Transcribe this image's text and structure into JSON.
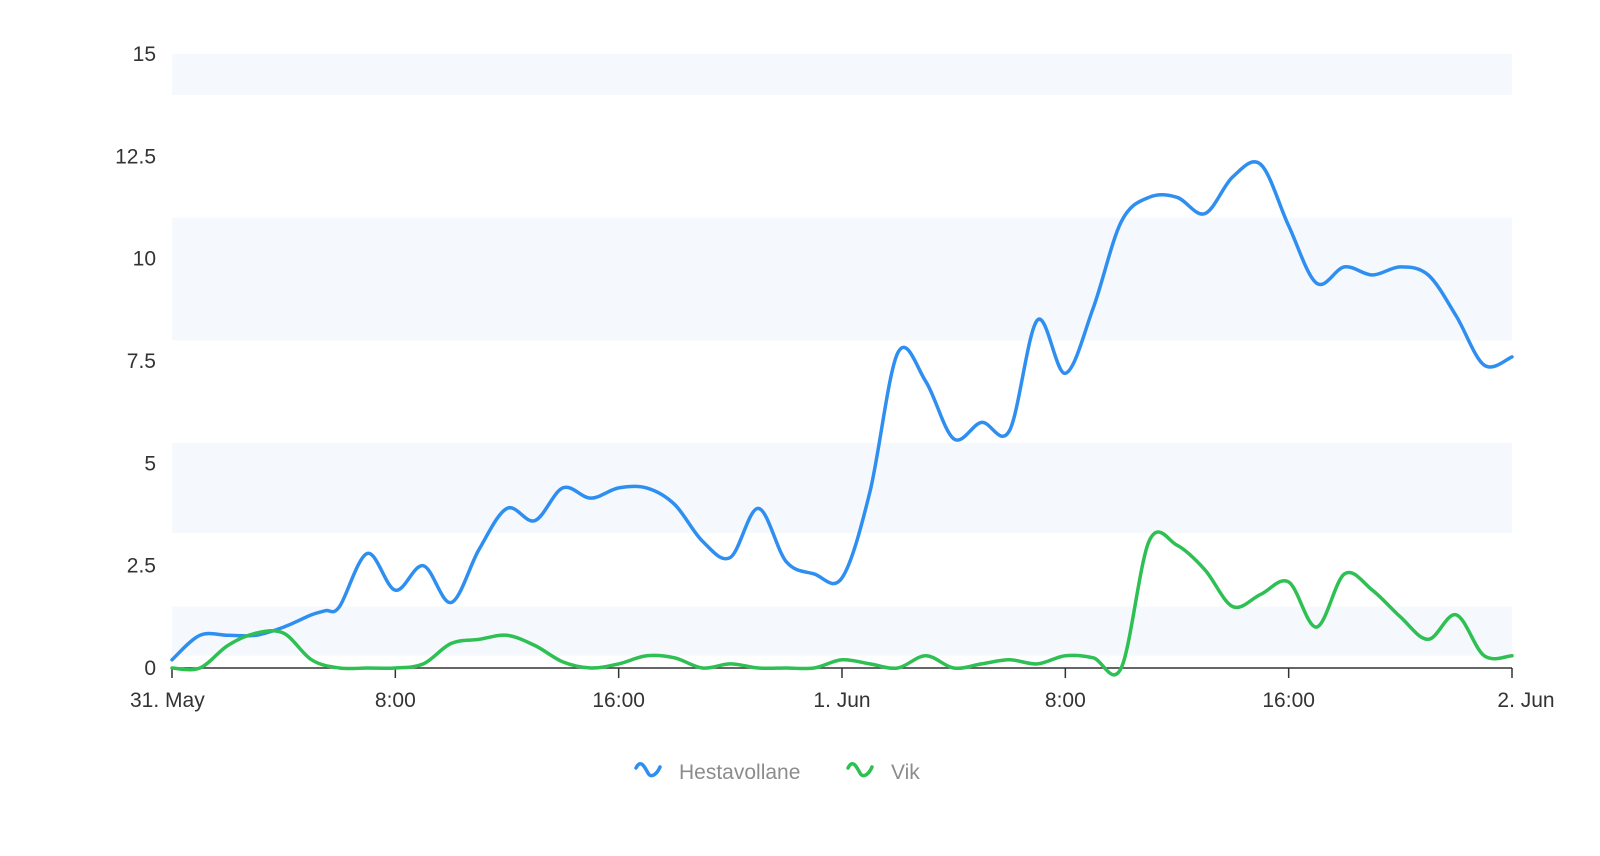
{
  "chart_data": {
    "type": "line",
    "title": "",
    "xlabel": "",
    "ylabel": "",
    "x_unit": "hours",
    "xlim": [
      0,
      48
    ],
    "ylim": [
      0,
      15
    ],
    "yticks": [
      0,
      2.5,
      5,
      7.5,
      10,
      12.5,
      15
    ],
    "ytick_labels": [
      "0",
      "2.5",
      "5",
      "7.5",
      "10",
      "12.5",
      "15"
    ],
    "xticks": [
      0,
      8,
      16,
      24,
      32,
      40,
      48
    ],
    "xtick_labels": [
      "31. May",
      "8:00",
      "16:00",
      "1. Jun",
      "8:00",
      "16:00",
      "2. Jun"
    ],
    "plot_bands": [
      {
        "from": 0.3,
        "to": 1.5
      },
      {
        "from": 3.3,
        "to": 5.5
      },
      {
        "from": 8.0,
        "to": 11.0
      },
      {
        "from": 14.0,
        "to": 15.0
      }
    ],
    "band_color": "#f5f9fd",
    "legend_position": "bottom-center",
    "series": [
      {
        "name": "Hestavollane",
        "color": "#2f8ff0",
        "x": [
          0,
          1,
          2,
          3,
          4,
          5,
          5.5,
          6,
          7,
          8,
          9,
          10,
          11,
          12,
          13,
          14,
          15,
          16,
          17,
          18,
          19,
          20,
          21,
          22,
          23,
          24,
          25,
          26,
          27,
          28,
          29,
          30,
          31,
          32,
          33,
          34,
          35,
          36,
          37,
          38,
          39,
          40,
          41,
          42,
          43,
          44,
          45,
          46,
          47,
          48
        ],
        "values": [
          0.2,
          0.8,
          0.8,
          0.8,
          1.0,
          1.3,
          1.4,
          1.5,
          2.8,
          1.9,
          2.5,
          1.6,
          2.9,
          3.9,
          3.6,
          4.4,
          4.15,
          4.4,
          4.4,
          4.0,
          3.1,
          2.7,
          3.9,
          2.6,
          2.3,
          2.2,
          4.3,
          7.7,
          7.0,
          5.6,
          6.0,
          5.8,
          8.5,
          7.2,
          8.8,
          10.9,
          11.5,
          11.5,
          11.1,
          12.0,
          12.3,
          10.8,
          9.4,
          9.8,
          9.6,
          9.8,
          9.6,
          8.6,
          7.4,
          7.6
        ]
      },
      {
        "name": "Vik",
        "color": "#2ec052",
        "x": [
          0,
          1,
          2,
          3,
          4,
          5,
          6,
          7,
          8,
          9,
          10,
          11,
          12,
          13,
          14,
          15,
          16,
          17,
          18,
          19,
          20,
          21,
          22,
          23,
          24,
          25,
          26,
          27,
          28,
          29,
          30,
          31,
          32,
          33,
          34,
          35,
          36,
          37,
          38,
          39,
          40,
          41,
          42,
          43,
          44,
          45,
          46,
          47,
          48
        ],
        "values": [
          0,
          0,
          0.55,
          0.85,
          0.85,
          0.2,
          0,
          0,
          0,
          0.1,
          0.6,
          0.7,
          0.8,
          0.55,
          0.15,
          0,
          0.1,
          0.3,
          0.25,
          0,
          0.1,
          0,
          0,
          0,
          0.2,
          0.1,
          0,
          0.3,
          0,
          0.1,
          0.2,
          0.1,
          0.3,
          0.25,
          0,
          3.1,
          3.0,
          2.4,
          1.5,
          1.8,
          2.1,
          1.0,
          2.3,
          1.9,
          1.25,
          0.7,
          1.3,
          0.3,
          0.3
        ]
      }
    ]
  }
}
